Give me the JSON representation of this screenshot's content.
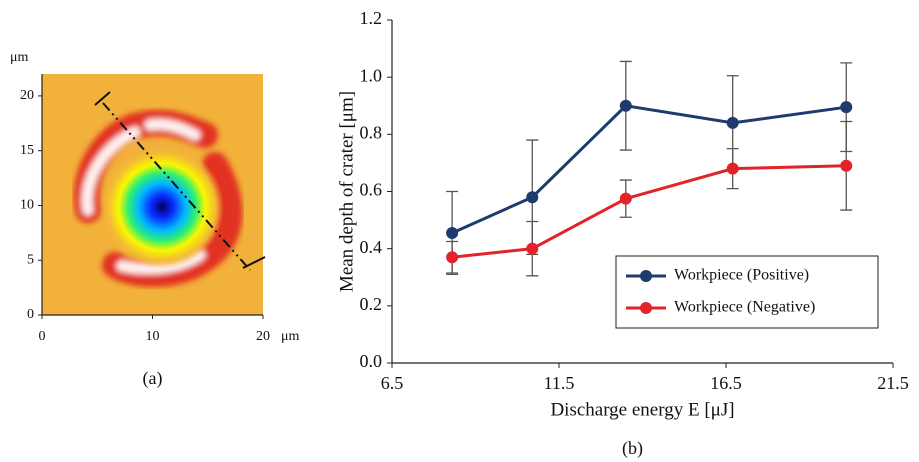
{
  "chart_data": [
    {
      "type": "heatmap",
      "caption": "(a)",
      "ylabel": "μm",
      "xlabel": "μm",
      "xlim": [
        0,
        20
      ],
      "ylim": [
        0,
        22
      ],
      "xticks": [
        0,
        10,
        20
      ],
      "yticks": [
        0,
        5,
        10,
        15,
        20
      ]
    },
    {
      "type": "line",
      "caption": "(b)",
      "xlabel": "Discharge energy E [μJ]",
      "ylabel": "Mean depth of crater [μm]",
      "x": [
        8.3,
        10.7,
        13.5,
        16.7,
        20.1
      ],
      "series": [
        {
          "name": "Workpiece (Positive)",
          "color": "#1f3a6e",
          "values": [
            0.455,
            0.58,
            0.9,
            0.84,
            0.895
          ],
          "errors": [
            0.145,
            0.2,
            0.155,
            0.165,
            0.155
          ]
        },
        {
          "name": "Workpiece (Negative)",
          "color": "#e3232a",
          "values": [
            0.37,
            0.4,
            0.575,
            0.68,
            0.69
          ],
          "errors": [
            0.055,
            0.095,
            0.065,
            0.07,
            0.155
          ]
        }
      ],
      "xlim": [
        6.5,
        21.5
      ],
      "xticks": [
        6.5,
        11.5,
        16.5,
        21.5
      ],
      "ylim": [
        0,
        1.2
      ],
      "yticks": [
        {
          "value": 0,
          "label": "0.0"
        },
        0.2,
        0.4,
        0.6,
        0.8,
        {
          "value": 1,
          "label": "1.0"
        },
        1.2
      ],
      "legend": "lower right"
    }
  ]
}
